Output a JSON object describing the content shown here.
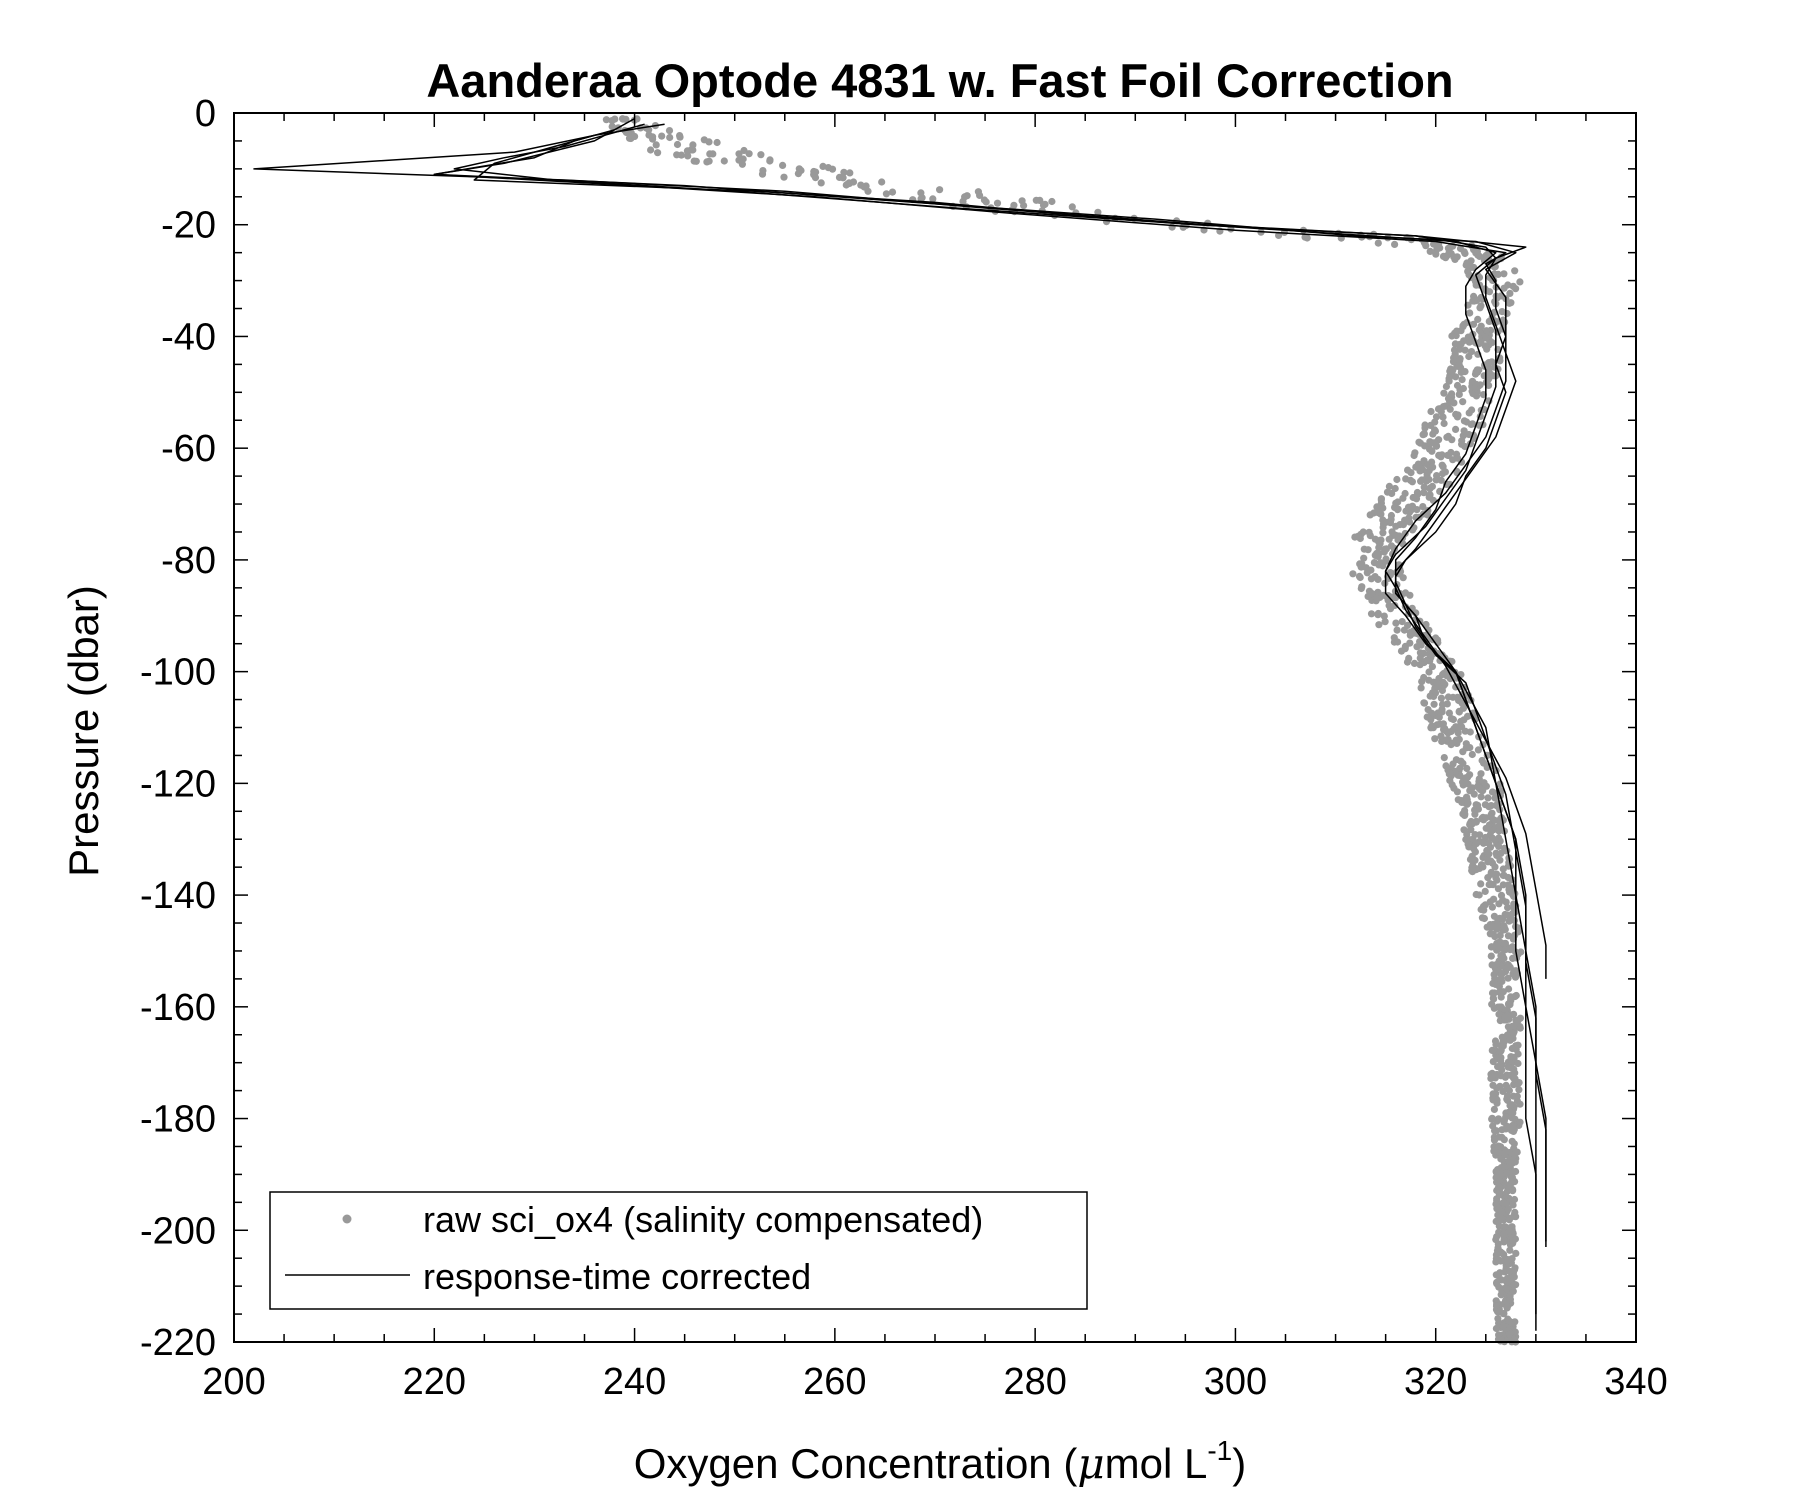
{
  "chart_data": {
    "type": "scatter",
    "title": "Aanderaa Optode 4831 w. Fast Foil Correction",
    "xlabel": {
      "prefix": "Oxygen Concentration (",
      "mu": "μ",
      "unit": "mol L",
      "exponent": "-1",
      "suffix": ")"
    },
    "ylabel": "Pressure (dbar)",
    "xlim": [
      200,
      340
    ],
    "ylim": [
      -220,
      0
    ],
    "x_ticks": [
      200,
      220,
      240,
      260,
      280,
      300,
      320,
      340
    ],
    "y_ticks": [
      0,
      -20,
      -40,
      -60,
      -80,
      -100,
      -120,
      -140,
      -160,
      -180,
      -200,
      -220
    ],
    "x_tick_labels": [
      "200",
      "220",
      "240",
      "260",
      "280",
      "300",
      "320",
      "340"
    ],
    "y_tick_labels": [
      "0",
      "-20",
      "-40",
      "-60",
      "-80",
      "-100",
      "-120",
      "-140",
      "-160",
      "-180",
      "-200",
      "-220"
    ],
    "grid": false,
    "legend_position": "bottom-left",
    "colors": {
      "raw": "#999999",
      "corrected": "#000000"
    },
    "series": [
      {
        "name": "raw sci_ox4 (salinity compensated)",
        "style": "markers",
        "profile_y": [
          -1,
          -3,
          -6,
          -9,
          -12,
          -15,
          -18,
          -20,
          -22,
          -24,
          -27,
          -30,
          -35,
          -40,
          -45,
          -50,
          -55,
          -60,
          -65,
          -70,
          -75,
          -78,
          -82,
          -86,
          -90,
          -95,
          -100,
          -110,
          -120,
          -130,
          -140,
          -150,
          -160,
          -170,
          -180,
          -190,
          -200,
          -210,
          -220
        ],
        "profile_x": [
          239,
          241,
          245,
          252,
          262,
          272,
          283,
          295,
          310,
          322,
          325,
          326,
          325,
          324,
          324,
          323,
          322,
          321,
          319,
          317,
          315,
          314,
          314,
          315,
          316,
          318,
          320,
          322,
          324,
          325,
          326,
          327,
          327,
          327,
          327,
          327,
          327,
          327,
          327
        ],
        "spread_x": [
          2,
          3,
          5,
          6,
          6,
          7,
          7,
          7,
          6,
          4,
          2.5,
          2.5,
          2.5,
          2.5,
          2.5,
          2.5,
          3,
          3,
          3,
          3,
          3,
          2.5,
          2.5,
          2.5,
          2.5,
          2.5,
          2.5,
          2.5,
          2.5,
          2,
          2,
          1.5,
          1.5,
          1.5,
          1.5,
          1,
          1,
          1,
          1
        ]
      },
      {
        "name": "response-time corrected",
        "style": "line",
        "casts": [
          {
            "y": [
              -3,
              -5,
              -8,
              -11,
              -13,
              -15,
              -18,
              -21,
              -23,
              -25,
              -27,
              -30,
              -35,
              -40,
              -45,
              -50,
              -55,
              -60,
              -65,
              -70,
              -75,
              -80,
              -83,
              -86,
              -90,
              -95,
              -100,
              -110,
              -120,
              -130,
              -140,
              -150,
              -160,
              -170,
              -180,
              -190,
              -200,
              -203
            ],
            "x": [
              238,
              234,
              230,
              220,
              240,
              258,
              278,
              300,
              320,
              327,
              325,
              326,
              326,
              327,
              326,
              327,
              326,
              325,
              323,
              322,
              320,
              317,
              316,
              316,
              318,
              320,
              322,
              324,
              326,
              328,
              329,
              329,
              330,
              330,
              331,
              331,
              331,
              331
            ]
          },
          {
            "y": [
              -2,
              -4,
              -7,
              -10,
              -12,
              -14,
              -17,
              -20,
              -22,
              -24,
              -26,
              -29,
              -34,
              -39,
              -44,
              -49,
              -54,
              -59,
              -64,
              -69,
              -74,
              -79,
              -82,
              -85,
              -89,
              -94,
              -99,
              -109,
              -119,
              -129,
              -139,
              -149,
              -155
            ],
            "x": [
              243,
              236,
              228,
              202,
              233,
              255,
              275,
              297,
              318,
              329,
              326,
              324,
              325,
              326,
              326,
              326,
              325,
              324,
              323,
              321,
              319,
              316,
              315,
              316,
              317,
              319,
              321,
              324,
              327,
              329,
              330,
              331,
              331
            ]
          },
          {
            "y": [
              -1,
              -3,
              -5,
              -9,
              -11,
              -13,
              -16,
              -19,
              -22,
              -23,
              -25,
              -28,
              -33,
              -38,
              -43,
              -48,
              -53,
              -58,
              -63,
              -68,
              -73,
              -78,
              -82,
              -86,
              -90,
              -95,
              -100,
              -110,
              -120,
              -130,
              -140,
              -150,
              -160,
              -170,
              -180,
              -190,
              -200,
              -210,
              -215
            ],
            "x": [
              240,
              238,
              236,
              227,
              220,
              245,
              268,
              292,
              312,
              324,
              328,
              325,
              327,
              327,
              327,
              328,
              327,
              326,
              324,
              322,
              320,
              318,
              316,
              316,
              318,
              319,
              322,
              325,
              326,
              328,
              328,
              329,
              329,
              330,
              330,
              330,
              330,
              330,
              330
            ]
          },
          {
            "y": [
              -4,
              -6,
              -9,
              -12,
              -14,
              -16,
              -19,
              -21,
              -23,
              -25,
              -28,
              -31,
              -36,
              -41,
              -46,
              -51,
              -56,
              -61,
              -66,
              -71,
              -76,
              -80,
              -84,
              -88,
              -92,
              -97,
              -102,
              -112,
              -122,
              -132,
              -142,
              -152,
              -162,
              -172,
              -182,
              -192,
              -202
            ],
            "x": [
              236,
              232,
              226,
              224,
              252,
              270,
              288,
              305,
              322,
              326,
              324,
              323,
              323,
              324,
              325,
              325,
              324,
              323,
              321,
              320,
              318,
              316,
              316,
              317,
              318,
              320,
              323,
              325,
              327,
              328,
              329,
              329,
              330,
              330,
              331,
              331,
              331
            ]
          },
          {
            "y": [
              -2,
              -4,
              -6,
              -8,
              -10,
              -12,
              -14,
              -17,
              -20,
              -22,
              -24,
              -26,
              -29,
              -33,
              -38,
              -43,
              -48,
              -53,
              -58,
              -63,
              -68,
              -73,
              -78,
              -82,
              -86,
              -90,
              -95,
              -100,
              -110,
              -120,
              -130,
              -140,
              -150,
              -160,
              -170,
              -180,
              -190,
              -200,
              -210,
              -218
            ],
            "x": [
              241,
              237,
              233,
              227,
              222,
              232,
              250,
              272,
              296,
              318,
              325,
              326,
              325,
              325,
              326,
              327,
              327,
              326,
              325,
              323,
              321,
              318,
              316,
              315,
              315,
              317,
              319,
              322,
              324,
              326,
              327,
              328,
              328,
              329,
              329,
              329,
              330,
              330,
              330,
              330
            ]
          }
        ]
      }
    ]
  }
}
